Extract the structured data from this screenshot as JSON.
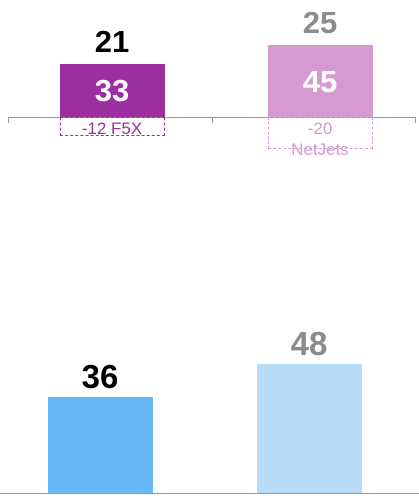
{
  "chart_data": [
    {
      "type": "waterfall",
      "categories": [
        null,
        null
      ],
      "values": [
        33,
        45
      ],
      "colors": [
        "#9c2f9f",
        "#d49ad1"
      ],
      "deductions": {
        "values": [
          -12,
          -20
        ],
        "value_labels": [
          "-12 F5X",
          "-20 NetJets"
        ]
      },
      "totals": [
        21,
        25
      ],
      "total_colors": [
        "#000000",
        "#8c8c8c"
      ],
      "ylim": [
        -40,
        70
      ]
    },
    {
      "type": "bar",
      "categories": [
        null,
        null
      ],
      "values": [
        36,
        48
      ],
      "colors": [
        "#66b8f8",
        "#b8dcf8"
      ],
      "label_colors": [
        "#000000",
        "#8c8c8c"
      ],
      "ylim": [
        0,
        60
      ]
    }
  ]
}
